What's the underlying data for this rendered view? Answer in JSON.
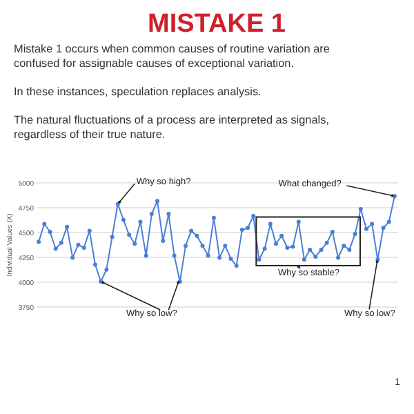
{
  "chart_data": {
    "type": "line",
    "title": "MISTAKE 1",
    "subtitle": "Mistake 1 occurs when common causes of routine variation are\nconfused for assignable causes of exceptional variation.\n\nIn these instances, speculation replaces analysis.\n\nThe natural fluctuations of a process are interpreted as signals,\nregardless of their true nature.",
    "ylabel": "Individual Values (X)",
    "categories": [
      null,
      null,
      null,
      null,
      null,
      null,
      null,
      null,
      null,
      null,
      null,
      null,
      null,
      null,
      null,
      null,
      null,
      null,
      null,
      null,
      null,
      null,
      null,
      null,
      null,
      null,
      null,
      null,
      null,
      null,
      null,
      null,
      null,
      null,
      null,
      null,
      null,
      null,
      null,
      null,
      null,
      null,
      null,
      null,
      null,
      null,
      null,
      null,
      null,
      null,
      null,
      null,
      null,
      null,
      null,
      null,
      null,
      null,
      null,
      null,
      null,
      null,
      null,
      null
    ],
    "series": [
      {
        "color": "#4a7fd6",
        "values": [
          4400,
          4580,
          4500,
          4330,
          4390,
          4550,
          4240,
          4370,
          4340,
          4510,
          4170,
          4000,
          4120,
          4450,
          4780,
          4620,
          4470,
          4380,
          4600,
          4260,
          4680,
          4810,
          4410,
          4680,
          4260,
          4000,
          4360,
          4510,
          4460,
          4360,
          4260,
          4640,
          4240,
          4360,
          4230,
          4160,
          4520,
          4540,
          4660,
          4220,
          4330,
          4580,
          4380,
          4460,
          4340,
          4350,
          4600,
          4220,
          4320,
          4250,
          4320,
          4390,
          4500,
          4240,
          4360,
          4320,
          4480,
          4730,
          4530,
          4580,
          4220,
          4540,
          4600,
          4860
        ]
      }
    ],
    "ylim": [
      3750,
      5000
    ],
    "yticks": [
      3750,
      4000,
      4250,
      4500,
      4750,
      5000
    ],
    "grid": "y",
    "marker": "circle",
    "line_style": "solid",
    "annotations": [
      "Why so high?",
      "Why so low?",
      "What changed?",
      "Why so stable?",
      "Why so low?",
      "1"
    ]
  }
}
